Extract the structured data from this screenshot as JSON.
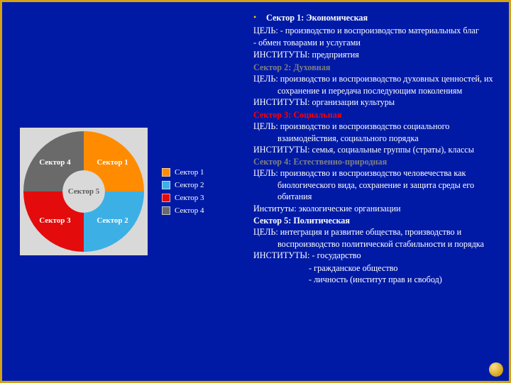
{
  "slide": {
    "background_color": "#001aa6",
    "border_color": "#d4a017",
    "font_family": "Times New Roman"
  },
  "chart": {
    "type": "doughnut",
    "inner_radius_ratio": 0.35,
    "background_color": "#001aa6",
    "plot_area_background": "#d9d9d9",
    "label_color": "#ffffff",
    "label_fontsize": 11,
    "legend_fontsize": 11,
    "legend_text_color": "#ffffff",
    "center_label": "Сектор 5",
    "segments": [
      {
        "name": "Сектор 1",
        "value": 25,
        "color": "#ff8c00",
        "label": "Сектор 1"
      },
      {
        "name": "Сектор 2",
        "value": 25,
        "color": "#3cb0e5",
        "label": "Сектор 2"
      },
      {
        "name": "Сектор 3",
        "value": 25,
        "color": "#e30b0b",
        "label": "Сектор 3"
      },
      {
        "name": "Сектор 4",
        "value": 25,
        "color": "#6a6a6a",
        "label": "Сектор 4"
      }
    ],
    "legend": [
      {
        "label": "Сектор 1",
        "color": "#ff8c00"
      },
      {
        "label": "Сектор 2",
        "color": "#3cb0e5"
      },
      {
        "label": "Сектор 3",
        "color": "#e30b0b"
      },
      {
        "label": "Сектор 4",
        "color": "#6a6a6a"
      }
    ]
  },
  "text": {
    "bullet_color": "#ffcc00",
    "sectors": [
      {
        "title": "Сектор 1: Экономическая",
        "title_color": "#ffffff",
        "lines": [
          {
            "t": "ЦЕЛЬ: - производство и воспроизводство материальных благ",
            "cls": "hang"
          },
          {
            "t": "-     обмен товарами и услугами",
            "cls": "body-line"
          },
          {
            "t": "ИНСТИТУТЫ: предприятия",
            "cls": "body-line"
          }
        ]
      },
      {
        "title": "Сектор 2: Духовная",
        "title_color": "#808080",
        "lines": [
          {
            "t": "ЦЕЛЬ: производство и воспроизводство духовных ценностей, их сохранение и передача последующим поколениям",
            "cls": "hang"
          },
          {
            "t": "ИНСТИТУТЫ: организации культуры",
            "cls": "body-line"
          }
        ]
      },
      {
        "title": "Сектор 3: Социальная",
        "title_color": "#ff0000",
        "lines": [
          {
            "t": "ЦЕЛЬ: производство и воспроизводство социального взаимодействия, социального порядка",
            "cls": "hang"
          },
          {
            "t": "ИНСТИТУТЫ: семья, социальные группы (страты), классы",
            "cls": "hang"
          }
        ]
      },
      {
        "title": "Сектор 4:   Естественно-природная",
        "title_color": "#808080",
        "lines": [
          {
            "t": "ЦЕЛЬ: производство и воспроизводство человечества как биологического вида, сохранение и защита среды его обитания",
            "cls": "hang"
          },
          {
            "t": "Институты: экологические организации",
            "cls": "body-line"
          }
        ]
      },
      {
        "title": "Сектор 5: Политическая",
        "title_color": "#ffffff",
        "lines": [
          {
            "t": "ЦЕЛЬ: интеграция и развитие общества, производство и воспроизводство политической стабильности и порядка",
            "cls": "hang"
          },
          {
            "t": "ИНСТИТУТЫ: - государство",
            "cls": "body-line"
          },
          {
            "t": "- гражданское общество",
            "cls": "sub-indent"
          },
          {
            "t": "- личность (институт прав и свобод)",
            "cls": "sub-indent"
          }
        ]
      }
    ]
  }
}
